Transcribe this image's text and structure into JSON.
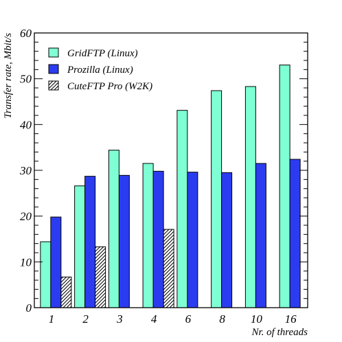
{
  "chart_data": {
    "type": "bar",
    "title": "",
    "xlabel": "Nr. of threads",
    "ylabel": "Transfer rate, Mbit/s",
    "categories": [
      "1",
      "2",
      "3",
      "4",
      "6",
      "8",
      "10",
      "16"
    ],
    "ylim": [
      0,
      60
    ],
    "yticks": [
      0,
      10,
      20,
      30,
      40,
      50,
      60
    ],
    "grid": false,
    "legend_position": "top-left",
    "series": [
      {
        "name": "GridFTP (Linux)",
        "values": [
          14.4,
          26.6,
          34.4,
          31.5,
          43.1,
          47.4,
          48.3,
          53.0
        ],
        "color": "#7fffd4",
        "pattern": "solid"
      },
      {
        "name": "Prozilla (Linux)",
        "values": [
          19.8,
          28.7,
          28.9,
          29.8,
          29.6,
          29.5,
          31.5,
          32.4
        ],
        "color": "#2b3cf0",
        "pattern": "solid"
      },
      {
        "name": "CuteFTP Pro (W2K)",
        "values": [
          6.7,
          13.3,
          null,
          17.1,
          null,
          null,
          null,
          null
        ],
        "color": "#ffffff",
        "pattern": "hatch"
      }
    ]
  }
}
